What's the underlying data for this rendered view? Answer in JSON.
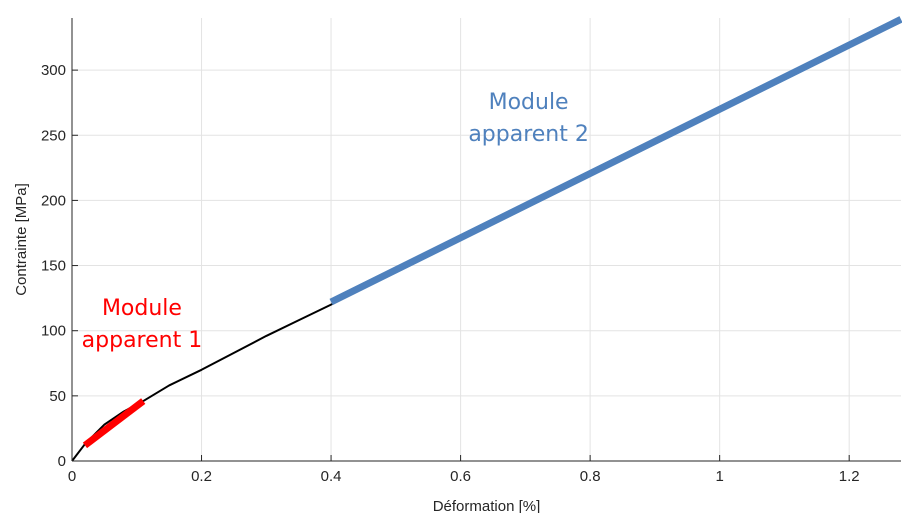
{
  "chart_data": {
    "type": "line",
    "xlabel": "Déformation [%]",
    "ylabel": "Contrainte [MPa]",
    "xlim": [
      0,
      1.28
    ],
    "ylim": [
      0,
      340
    ],
    "x_ticks": [
      0,
      0.2,
      0.4,
      0.6,
      0.8,
      1,
      1.2
    ],
    "x_tick_labels": [
      "0",
      "0.2",
      "0.4",
      "0.6",
      "0.8",
      "1",
      "1.2"
    ],
    "y_ticks": [
      0,
      50,
      100,
      150,
      200,
      250,
      300
    ],
    "y_tick_labels": [
      "0",
      "50",
      "100",
      "150",
      "200",
      "250",
      "300"
    ],
    "grid": true,
    "series": [
      {
        "color": "#000000",
        "x": [
          0,
          0.02,
          0.05,
          0.08,
          0.11,
          0.15,
          0.2,
          0.25,
          0.3,
          0.35,
          0.4,
          0.5,
          0.6,
          0.7,
          0.8,
          0.9,
          1.0,
          1.1,
          1.2,
          1.28
        ],
        "y": [
          0,
          13,
          28,
          38,
          46,
          58,
          70,
          83,
          96,
          108,
          120,
          145,
          170,
          195,
          219,
          244,
          269,
          294,
          318,
          337
        ]
      },
      {
        "color": "#ff0000",
        "x": [
          0.02,
          0.11
        ],
        "y": [
          12,
          46
        ]
      },
      {
        "color": "#4f81bd",
        "x": [
          0.4,
          1.28
        ],
        "y": [
          122,
          339
        ]
      }
    ],
    "annotations": [
      {
        "lines": [
          "Module",
          "apparent 1"
        ],
        "x": 0.108,
        "y": 112,
        "color": "#ff0000"
      },
      {
        "lines": [
          "Module",
          "apparent 2"
        ],
        "x": 0.705,
        "y": 270,
        "color": "#4f81bd"
      }
    ]
  }
}
